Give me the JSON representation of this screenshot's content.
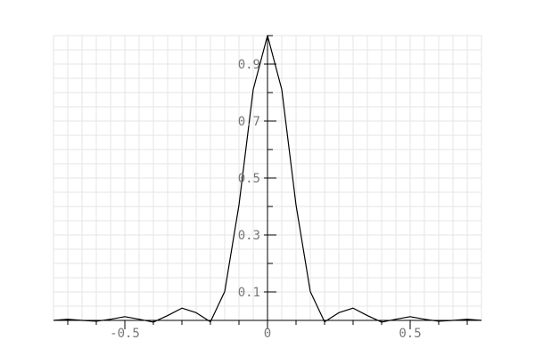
{
  "chart_data": {
    "type": "line",
    "title": "",
    "xlabel": "",
    "ylabel": "",
    "xlim": [
      -0.75,
      0.75
    ],
    "ylim": [
      0,
      1
    ],
    "grid": true,
    "x_ticks": [
      {
        "value": -0.5,
        "label": "-0.5"
      },
      {
        "value": 0,
        "label": "0"
      },
      {
        "value": 0.5,
        "label": "0.5"
      }
    ],
    "y_ticks": [
      {
        "value": 0.1,
        "label": "0.1"
      },
      {
        "value": 0.3,
        "label": "0.3"
      },
      {
        "value": 0.5,
        "label": "0.5"
      },
      {
        "value": 0.7,
        "label": "0.7"
      },
      {
        "value": 0.9,
        "label": "0.9"
      }
    ],
    "series": [
      {
        "color": "#000000",
        "x": [
          -0.75,
          -0.7,
          -0.65,
          -0.6,
          -0.55,
          -0.5,
          -0.45,
          -0.4,
          -0.35,
          -0.3,
          -0.25,
          -0.2,
          -0.15,
          -0.1,
          -0.05,
          0,
          0.05,
          0.1,
          0.15,
          0.2,
          0.25,
          0.3,
          0.35,
          0.4,
          0.45,
          0.5,
          0.55,
          0.6,
          0.65,
          0.7,
          0.75
        ],
        "y": [
          0.0,
          0.004,
          0.0,
          -0.003,
          0.004,
          0.013,
          0.004,
          -0.006,
          0.017,
          0.043,
          0.027,
          -0.005,
          0.101,
          0.405,
          0.811,
          1.0,
          0.811,
          0.405,
          0.101,
          -0.005,
          0.027,
          0.043,
          0.017,
          -0.006,
          0.004,
          0.013,
          0.004,
          -0.003,
          0.0,
          0.004,
          0.0
        ]
      }
    ]
  },
  "colors": {
    "grid": "#e6e6e6",
    "axis": "#000000",
    "tick_label": "#777777",
    "line": "#000000"
  }
}
